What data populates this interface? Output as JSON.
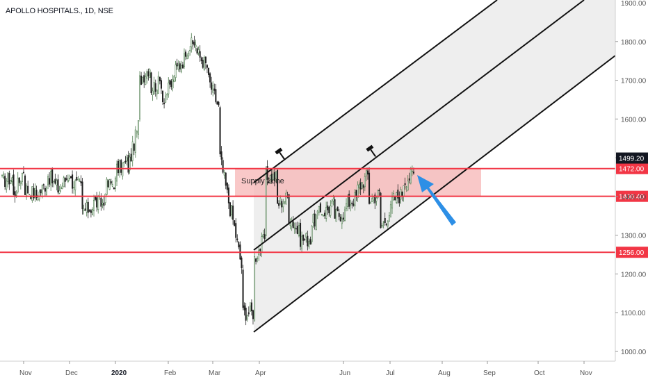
{
  "chart_data": {
    "type": "candlestick",
    "title": "APOLLO HOSPITALS., 1D, NSE",
    "y_axis": {
      "ticks": [
        1000,
        1100,
        1200,
        1300,
        1400,
        1500,
        1600,
        1700,
        1800,
        1900
      ],
      "tick_labels": [
        "1000.00",
        "1100.00",
        "1200.00",
        "1300.00",
        "1400.00",
        "1500.00",
        "1600.00",
        "1700.00",
        "1800.00",
        "1900.00"
      ],
      "range": [
        985,
        1905
      ]
    },
    "x_axis": {
      "tick_labels": [
        "Nov",
        "Dec",
        "2020",
        "Feb",
        "Mar",
        "Apr",
        "Jun",
        "Jul",
        "Aug",
        "Sep",
        "Oct",
        "Nov"
      ],
      "bold_labels": [
        "2020"
      ]
    },
    "series": [
      {
        "anchors": [
          [
            1515,
            1440
          ],
          [
            1450,
            1400
          ],
          [
            1480,
            1420
          ],
          [
            1405,
            1400
          ],
          [
            1440,
            1455
          ],
          [
            1415,
            1420
          ],
          [
            1465,
            1440
          ],
          [
            1420,
            1360
          ],
          [
            1375,
            1385
          ],
          [
            1380,
            1425
          ],
          [
            1440,
            1470
          ],
          [
            1490,
            1475
          ],
          [
            1600,
            1700
          ],
          [
            1740,
            1680
          ],
          [
            1700,
            1650
          ],
          [
            1700,
            1720
          ],
          [
            1760,
            1780
          ],
          [
            1800,
            1770
          ],
          [
            1730,
            1700
          ],
          [
            1620,
            1500
          ],
          [
            1350,
            1360
          ],
          [
            1200,
            1100
          ],
          [
            1100,
            1240
          ],
          [
            1300,
            1450
          ],
          [
            1450,
            1380
          ],
          [
            1400,
            1350
          ],
          [
            1300,
            1290
          ],
          [
            1290,
            1330
          ],
          [
            1370,
            1360
          ],
          [
            1380,
            1350
          ],
          [
            1360,
            1380
          ],
          [
            1400,
            1420
          ],
          [
            1460,
            1390
          ],
          [
            1410,
            1320
          ],
          [
            1370,
            1390
          ],
          [
            1410,
            1440
          ],
          [
            1460,
            1490
          ]
        ]
      }
    ],
    "horizontal_levels": [
      {
        "value": 1472.0,
        "label": "1472.00",
        "color": "#f23645"
      },
      {
        "value": 1400.4,
        "label": "1400.40",
        "color": "#f23645"
      },
      {
        "value": 1256.0,
        "label": "1256.00",
        "color": "#f23645"
      }
    ],
    "last_price": {
      "value": 1499.2,
      "label": "1499.20",
      "color": "#131722"
    },
    "supply_zone": {
      "label": "Supply Zone",
      "top": 1472,
      "bottom": 1400,
      "color": "#f7b6b6"
    },
    "channel": {
      "description": "ascending parallel channel, three lines",
      "fill": "#ececec"
    },
    "annotations": [
      {
        "type": "hammer",
        "count": 2
      },
      {
        "type": "arrow",
        "color": "#2d8fe6",
        "direction": "up-left"
      }
    ],
    "colors": {
      "up": "#4e7d4e",
      "down": "#222222",
      "axis_text": "#555555",
      "grid": "none"
    }
  }
}
